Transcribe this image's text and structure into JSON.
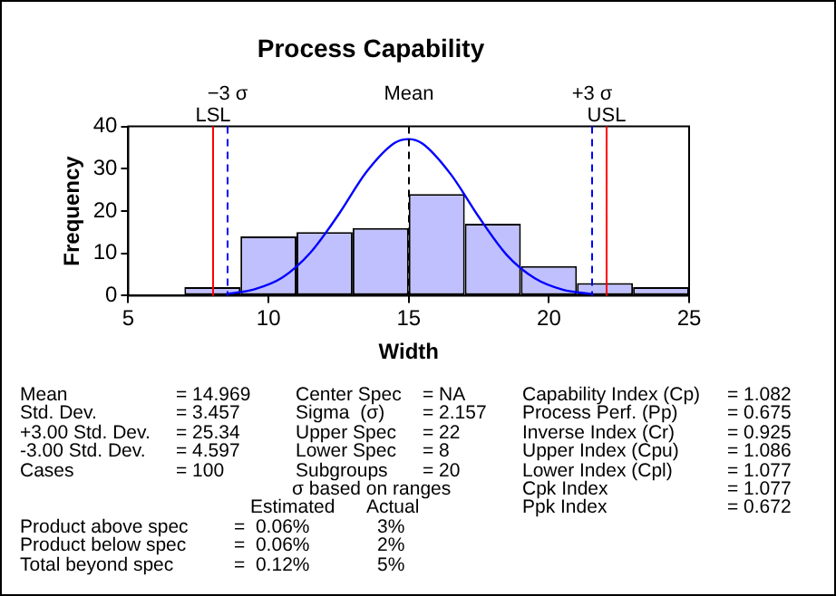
{
  "chart_data": {
    "type": "histogram",
    "title": "Process Capability",
    "xlabel": "Width",
    "ylabel": "Frequency",
    "bins": [
      7,
      9,
      11,
      13,
      15,
      17,
      19,
      21,
      23,
      25
    ],
    "values": [
      2,
      14,
      15,
      16,
      24,
      17,
      7,
      3,
      2
    ],
    "color": "#c0c0ff",
    "xlim": [
      5,
      25
    ],
    "xticks": [
      5,
      10,
      15,
      20,
      25
    ],
    "ylim": [
      0,
      40
    ],
    "yticks": [
      0,
      10,
      20,
      30,
      40
    ],
    "grid": false,
    "legend": false,
    "series": [
      {
        "type": "line",
        "color": "#0000ff",
        "x": [
          8.5,
          9.5,
          10.5,
          11.5,
          12.5,
          13.5,
          14.5,
          15,
          15.5,
          16.5,
          17.5,
          18.5,
          19.5,
          20.5,
          21.5
        ],
        "values": [
          0.4,
          1.5,
          4.3,
          10.2,
          19.2,
          29.3,
          36.1,
          37,
          35.9,
          28.7,
          18.6,
          9.6,
          4.1,
          1.4,
          0.4
        ]
      }
    ],
    "ref_lines": [
      {
        "axis": "x",
        "value": 8,
        "label": "LSL",
        "color": "#ff0000",
        "line_style": "solid"
      },
      {
        "axis": "x",
        "value": 8.5,
        "label": "−3 σ",
        "color": "#0000ff",
        "line_style": "dashed"
      },
      {
        "axis": "x",
        "value": 15,
        "label": "Mean",
        "color": "#000000",
        "line_style": "dashed"
      },
      {
        "axis": "x",
        "value": 21.5,
        "label": "+3 σ",
        "color": "#0000ff",
        "line_style": "dashed"
      },
      {
        "axis": "x",
        "value": 22,
        "label": "USL",
        "color": "#ff0000",
        "line_style": "solid"
      }
    ],
    "annotations": [
      "Mean",
      "= 14.969",
      "Center Spec",
      "= NA",
      "Capability Index (Cp)",
      "= 1.082",
      "Std. Dev.",
      "= 3.457",
      "Sigma  (σ)",
      "= 2.157",
      "Process Perf. (Pp)",
      "= 0.675",
      "+3.00 Std. Dev.",
      "= 25.34",
      "Upper Spec",
      "= 22",
      "Inverse Index (Cr)",
      "= 0.925",
      "-3.00 Std. Dev.",
      "= 4.597",
      "Lower Spec",
      "= 8",
      "Upper Index (Cpu)",
      "= 1.086",
      "Cases",
      "= 100",
      "Subgroups",
      "= 20",
      "Lower Index (Cpl)",
      "= 1.077",
      "σ based on ranges",
      "Cpk Index",
      "= 1.077",
      "Estimated",
      "Actual",
      "Ppk Index",
      "= 0.672",
      "Product above spec",
      "=  0.06%",
      "3%",
      "Product below spec",
      "=  0.06%",
      "2%",
      "Total beyond spec",
      "=  0.12%",
      "5%"
    ]
  }
}
